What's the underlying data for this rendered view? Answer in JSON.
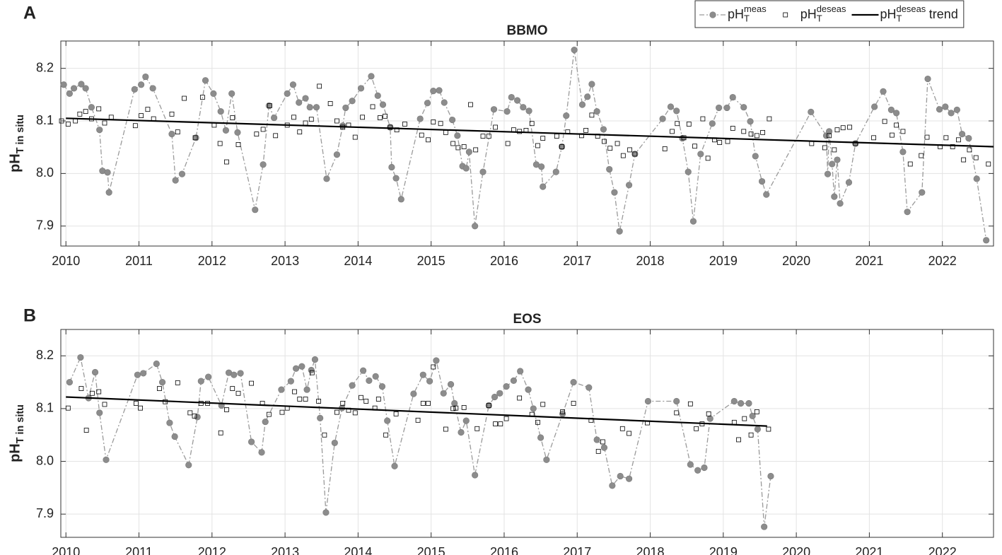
{
  "chart_data": [
    {
      "type": "line",
      "panel": "A",
      "title": "BBMO",
      "ylabel": {
        "base": "pH",
        "sub": "T in situ"
      },
      "legend": "upper right",
      "grid": true,
      "xlim": [
        2009.93,
        2022.7
      ],
      "xticks": [
        2010,
        2011,
        2012,
        2013,
        2014,
        2015,
        2016,
        2017,
        2018,
        2019,
        2020,
        2021,
        2022
      ],
      "ylim": [
        7.862,
        8.252
      ],
      "yticks": [
        7.9,
        {
          "value": 8,
          "label": "8.0"
        },
        8.1,
        8.2
      ],
      "series": [
        {
          "name": {
            "base": "pH",
            "sub": "T",
            "sup": "meas"
          },
          "color": "#8c8c8c",
          "marker": "circle",
          "line": "dashdot",
          "x": [
            2009.97,
            2010.05,
            2010.11,
            2010.21,
            2010.27,
            2010.35,
            2010.46,
            2010.5,
            2010.57,
            2010.59,
            2010.94,
            2011.03,
            2011.09,
            2011.19,
            2011.45,
            2011.5,
            2011.59,
            2011.78,
            2011.91,
            2012.02,
            2012.12,
            2012.19,
            2012.27,
            2012.35,
            2012.59,
            2012.7,
            2012.78,
            2012.85,
            2013.03,
            2013.11,
            2013.19,
            2013.28,
            2013.34,
            2013.43,
            2013.57,
            2013.71,
            2013.79,
            2013.83,
            2013.92,
            2014.04,
            2014.18,
            2014.27,
            2014.34,
            2014.44,
            2014.46,
            2014.52,
            2014.59,
            2014.85,
            2014.95,
            2015.03,
            2015.11,
            2015.18,
            2015.29,
            2015.36,
            2015.43,
            2015.48,
            2015.52,
            2015.6,
            2015.71,
            2015.86,
            2016.04,
            2016.1,
            2016.18,
            2016.26,
            2016.34,
            2016.44,
            2016.51,
            2016.53,
            2016.71,
            2016.79,
            2016.85,
            2016.96,
            2017.07,
            2017.14,
            2017.2,
            2017.27,
            2017.36,
            2017.44,
            2017.51,
            2017.58,
            2017.71,
            2017.79,
            2018.17,
            2018.28,
            2018.36,
            2018.44,
            2018.52,
            2018.59,
            2018.69,
            2018.85,
            2018.94,
            2019.05,
            2019.13,
            2019.28,
            2019.37,
            2019.44,
            2019.53,
            2019.59,
            2020.2,
            2020.41,
            2020.43,
            2020.45,
            2020.49,
            2020.52,
            2020.56,
            2020.6,
            2020.72,
            2020.81,
            2021.07,
            2021.19,
            2021.3,
            2021.37,
            2021.46,
            2021.52,
            2021.72,
            2021.8,
            2021.96,
            2022.04,
            2022.12,
            2022.2,
            2022.27,
            2022.36,
            2022.47,
            2022.6
          ],
          "values": [
            8.169,
            8.152,
            8.162,
            8.17,
            8.162,
            8.126,
            8.083,
            8.005,
            8.002,
            7.964,
            8.16,
            8.169,
            8.184,
            8.162,
            8.075,
            7.987,
            7.999,
            8.068,
            8.177,
            8.152,
            8.118,
            8.082,
            8.152,
            8.078,
            7.931,
            8.017,
            8.129,
            8.106,
            8.152,
            8.169,
            8.135,
            8.143,
            8.126,
            8.126,
            7.99,
            8.036,
            8.091,
            8.125,
            8.138,
            8.162,
            8.185,
            8.148,
            8.131,
            8.088,
            8.012,
            7.991,
            7.951,
            8.104,
            8.134,
            8.157,
            8.158,
            8.135,
            8.102,
            8.072,
            8.014,
            8.01,
            8.041,
            7.9,
            8.003,
            8.122,
            8.118,
            8.145,
            8.139,
            8.126,
            8.119,
            8.017,
            8.013,
            7.975,
            8.003,
            8.051,
            8.11,
            8.235,
            8.131,
            8.146,
            8.17,
            8.118,
            8.084,
            8.008,
            7.964,
            7.89,
            7.978,
            8.037,
            8.104,
            8.127,
            8.119,
            8.067,
            8.003,
            7.909,
            8.037,
            8.095,
            8.125,
            8.125,
            8.145,
            8.126,
            8.099,
            8.033,
            7.985,
            7.96,
            8.117,
            8.072,
            7.999,
            8.08,
            8.018,
            7.956,
            8.026,
            7.943,
            7.983,
            8.057,
            8.127,
            8.156,
            8.121,
            8.115,
            8.041,
            7.927,
            7.964,
            8.18,
            8.122,
            8.127,
            8.115,
            8.121,
            8.075,
            8.067,
            7.99,
            7.873
          ]
        },
        {
          "name": {
            "base": "pH",
            "sub": "T",
            "sup": "deseas"
          },
          "color": "#000000",
          "marker": "square",
          "line": "none",
          "x": [
            2009.94,
            2010.03,
            2010.13,
            2010.19,
            2010.27,
            2010.35,
            2010.45,
            2010.53,
            2010.62,
            2010.95,
            2011.03,
            2011.12,
            2011.2,
            2011.45,
            2011.53,
            2011.62,
            2011.77,
            2011.87,
            2012.03,
            2012.11,
            2012.2,
            2012.28,
            2012.36,
            2012.61,
            2012.7,
            2012.79,
            2012.87,
            2013.03,
            2013.12,
            2013.2,
            2013.28,
            2013.36,
            2013.47,
            2013.62,
            2013.71,
            2013.79,
            2013.87,
            2013.96,
            2014.06,
            2014.2,
            2014.3,
            2014.37,
            2014.44,
            2014.53,
            2014.64,
            2014.87,
            2014.96,
            2015.03,
            2015.13,
            2015.2,
            2015.3,
            2015.37,
            2015.45,
            2015.54,
            2015.61,
            2015.71,
            2015.79,
            2015.88,
            2016.05,
            2016.13,
            2016.21,
            2016.3,
            2016.38,
            2016.46,
            2016.53,
            2016.72,
            2016.79,
            2016.87,
            2017.06,
            2017.12,
            2017.2,
            2017.28,
            2017.37,
            2017.45,
            2017.55,
            2017.63,
            2017.72,
            2017.79,
            2018.2,
            2018.3,
            2018.37,
            2018.46,
            2018.53,
            2018.61,
            2018.72,
            2018.79,
            2018.88,
            2018.95,
            2019.06,
            2019.13,
            2019.28,
            2019.38,
            2019.46,
            2019.54,
            2019.63,
            2020.21,
            2020.39,
            2020.45,
            2020.52,
            2020.56,
            2020.64,
            2020.73,
            2020.81,
            2021.06,
            2021.21,
            2021.31,
            2021.37,
            2021.46,
            2021.56,
            2021.71,
            2021.79,
            2021.97,
            2022.05,
            2022.14,
            2022.22,
            2022.29,
            2022.37,
            2022.46,
            2022.63
          ],
          "values": [
            8.1,
            8.094,
            8.1,
            8.113,
            8.118,
            8.104,
            8.123,
            8.096,
            8.107,
            8.091,
            8.11,
            8.122,
            8.104,
            8.113,
            8.079,
            8.143,
            8.068,
            8.145,
            8.092,
            8.057,
            8.022,
            8.106,
            8.055,
            8.075,
            8.084,
            8.129,
            8.072,
            8.092,
            8.107,
            8.079,
            8.096,
            8.103,
            8.166,
            8.133,
            8.1,
            8.088,
            8.092,
            8.069,
            8.107,
            8.127,
            8.106,
            8.109,
            8.088,
            8.083,
            8.094,
            8.073,
            8.064,
            8.098,
            8.095,
            8.078,
            8.057,
            8.049,
            8.051,
            8.131,
            8.045,
            8.071,
            8.071,
            8.088,
            8.057,
            8.083,
            8.08,
            8.082,
            8.095,
            8.053,
            8.067,
            8.071,
            8.051,
            8.079,
            8.072,
            8.082,
            8.111,
            8.071,
            8.061,
            8.048,
            8.057,
            8.034,
            8.045,
            8.037,
            8.047,
            8.08,
            8.095,
            8.068,
            8.094,
            8.052,
            8.104,
            8.029,
            8.064,
            8.059,
            8.061,
            8.086,
            8.08,
            8.075,
            8.072,
            8.078,
            8.104,
            8.057,
            8.049,
            8.072,
            8.045,
            8.083,
            8.087,
            8.088,
            8.057,
            8.068,
            8.099,
            8.073,
            8.092,
            8.08,
            8.018,
            8.034,
            8.069,
            8.051,
            8.068,
            8.051,
            8.064,
            8.026,
            8.045,
            8.03,
            8.018
          ]
        },
        {
          "name": {
            "base": "pH",
            "sub": "T",
            "sup": "deseas",
            "suffix": "trend"
          },
          "color": "#000000",
          "marker": "none",
          "line": "solid",
          "x": [
            2010,
            2022.7
          ],
          "values": [
            8.105,
            8.051
          ]
        }
      ]
    },
    {
      "type": "line",
      "panel": "B",
      "title": "EOS",
      "ylabel": {
        "base": "pH",
        "sub": "T in situ"
      },
      "grid": true,
      "xlim": [
        2009.93,
        2022.7
      ],
      "xticks": [
        2010,
        2011,
        2012,
        2013,
        2014,
        2015,
        2016,
        2017,
        2018,
        2019,
        2020,
        2021,
        2022
      ],
      "ylim": [
        7.856,
        8.25
      ],
      "yticks": [
        7.9,
        {
          "value": 8,
          "label": "8.0"
        },
        8.1,
        8.2
      ],
      "series": [
        {
          "color": "#8c8c8c",
          "marker": "circle",
          "line": "dashdot",
          "x": [
            2010.05,
            2010.2,
            2010.31,
            2010.4,
            2010.46,
            2010.55,
            2010.98,
            2011.06,
            2011.24,
            2011.32,
            2011.42,
            2011.49,
            2011.68,
            2011.8,
            2011.85,
            2011.95,
            2012.13,
            2012.23,
            2012.3,
            2012.39,
            2012.54,
            2012.68,
            2012.73,
            2012.95,
            2013.08,
            2013.15,
            2013.23,
            2013.3,
            2013.36,
            2013.41,
            2013.48,
            2013.56,
            2013.68,
            2013.78,
            2013.92,
            2014.07,
            2014.15,
            2014.24,
            2014.33,
            2014.4,
            2014.5,
            2014.76,
            2014.89,
            2014.98,
            2015.07,
            2015.17,
            2015.27,
            2015.32,
            2015.41,
            2015.48,
            2015.6,
            2015.79,
            2015.87,
            2015.94,
            2016.03,
            2016.13,
            2016.22,
            2016.33,
            2016.4,
            2016.5,
            2016.58,
            2016.8,
            2016.95,
            2017.16,
            2017.27,
            2017.37,
            2017.48,
            2017.59,
            2017.71,
            2017.97,
            2018.36,
            2018.55,
            2018.65,
            2018.74,
            2018.82,
            2019.15,
            2019.24,
            2019.35,
            2019.4,
            2019.47,
            2019.56,
            2019.65
          ],
          "values": [
            8.15,
            8.197,
            8.12,
            8.169,
            8.092,
            8.003,
            8.164,
            8.167,
            8.185,
            8.15,
            8.073,
            8.047,
            7.993,
            8.084,
            8.152,
            8.16,
            8.106,
            8.168,
            8.164,
            8.167,
            8.037,
            8.017,
            8.075,
            8.136,
            8.152,
            8.176,
            8.18,
            8.136,
            8.173,
            8.193,
            8.082,
            7.903,
            8.035,
            8.101,
            8.144,
            8.172,
            8.153,
            8.161,
            8.142,
            8.077,
            7.991,
            8.128,
            8.164,
            8.152,
            8.191,
            8.129,
            8.146,
            8.11,
            8.055,
            8.077,
            7.974,
            8.106,
            8.122,
            8.129,
            8.142,
            8.153,
            8.171,
            8.136,
            8.1,
            8.045,
            8.003,
            8.09,
            8.15,
            8.14,
            8.041,
            8.026,
            7.954,
            7.972,
            7.967,
            8.114,
            8.114,
            7.994,
            7.983,
            7.988,
            8.081,
            8.114,
            8.11,
            8.11,
            8.086,
            8.061,
            7.876,
            7.972
          ]
        },
        {
          "color": "#000000",
          "marker": "square",
          "line": "none",
          "x": [
            2010.03,
            2010.21,
            2010.28,
            2010.36,
            2010.45,
            2010.53,
            2010.96,
            2011.02,
            2011.28,
            2011.36,
            2011.53,
            2011.7,
            2011.76,
            2011.85,
            2011.94,
            2012.12,
            2012.2,
            2012.28,
            2012.36,
            2012.54,
            2012.69,
            2012.78,
            2012.96,
            2013.03,
            2013.13,
            2013.2,
            2013.28,
            2013.37,
            2013.46,
            2013.54,
            2013.71,
            2013.79,
            2013.87,
            2013.96,
            2014.04,
            2014.11,
            2014.23,
            2014.28,
            2014.38,
            2014.52,
            2014.82,
            2014.89,
            2014.96,
            2015.03,
            2015.2,
            2015.3,
            2015.34,
            2015.45,
            2015.63,
            2015.79,
            2015.88,
            2015.95,
            2016.03,
            2016.21,
            2016.38,
            2016.46,
            2016.53,
            2016.8,
            2016.95,
            2017.19,
            2017.29,
            2017.35,
            2017.62,
            2017.71,
            2017.96,
            2018.36,
            2018.55,
            2018.63,
            2018.71,
            2018.8,
            2019.15,
            2019.21,
            2019.29,
            2019.38,
            2019.46,
            2019.62
          ],
          "values": [
            8.101,
            8.138,
            8.059,
            8.129,
            8.132,
            8.108,
            8.11,
            8.101,
            8.138,
            8.113,
            8.149,
            8.092,
            8.086,
            8.11,
            8.11,
            8.054,
            8.098,
            8.138,
            8.129,
            8.148,
            8.11,
            8.089,
            8.093,
            8.101,
            8.132,
            8.118,
            8.118,
            8.168,
            8.114,
            8.05,
            8.093,
            8.11,
            8.097,
            8.092,
            8.121,
            8.114,
            8.101,
            8.118,
            8.05,
            8.09,
            8.078,
            8.11,
            8.11,
            8.179,
            8.061,
            8.1,
            8.101,
            8.102,
            8.062,
            8.106,
            8.071,
            8.071,
            8.081,
            8.12,
            8.089,
            8.074,
            8.108,
            8.094,
            8.11,
            8.078,
            8.019,
            8.037,
            8.062,
            8.053,
            8.073,
            8.092,
            8.109,
            8.062,
            8.071,
            8.09,
            8.074,
            8.041,
            8.081,
            8.05,
            8.094,
            8.061
          ]
        },
        {
          "color": "#000000",
          "marker": "none",
          "line": "solid",
          "x": [
            2010,
            2019.6
          ],
          "values": [
            8.122,
            8.067
          ]
        }
      ]
    }
  ]
}
